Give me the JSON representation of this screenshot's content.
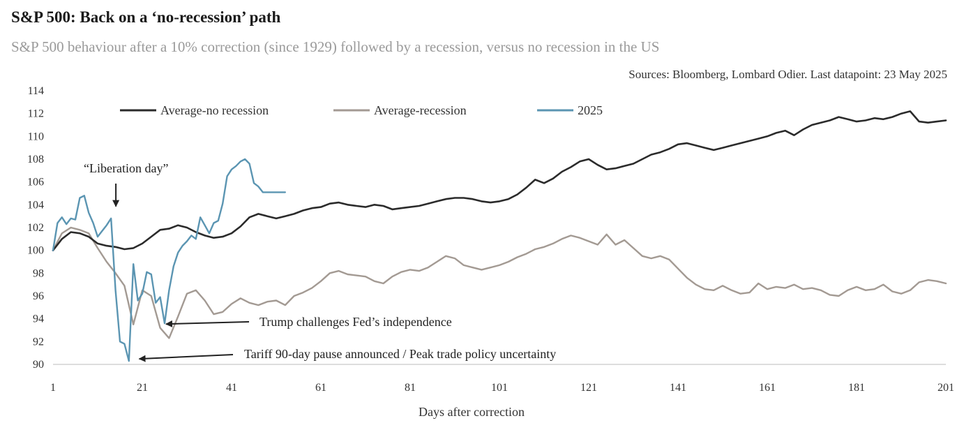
{
  "title": "S&P 500: Back on a ‘no-recession’ path",
  "subtitle": "S&P 500 behaviour after a 10% correction (since 1929) followed by a recession, versus no recession in the US",
  "source": "Sources: Bloomberg, Lombard Odier. Last datapoint: 23 May 2025",
  "chart_data": {
    "type": "line",
    "xlabel": "Days after correction",
    "ylabel": "",
    "xlim": [
      1,
      201
    ],
    "ylim": [
      90,
      114
    ],
    "x_ticks": [
      1,
      21,
      41,
      61,
      81,
      101,
      121,
      141,
      161,
      181,
      201
    ],
    "y_ticks": [
      90,
      92,
      94,
      96,
      98,
      100,
      102,
      104,
      106,
      108,
      110,
      112,
      114
    ],
    "grid": false,
    "legend_position": "top-left",
    "series": [
      {
        "name": "Average-no recession",
        "color": "#2b2b2b",
        "x": [
          1,
          3,
          5,
          7,
          9,
          11,
          13,
          15,
          17,
          19,
          21,
          23,
          25,
          27,
          29,
          31,
          33,
          35,
          37,
          39,
          41,
          43,
          45,
          47,
          49,
          51,
          53,
          55,
          57,
          59,
          61,
          63,
          65,
          67,
          69,
          71,
          73,
          75,
          77,
          79,
          81,
          83,
          85,
          87,
          89,
          91,
          93,
          95,
          97,
          99,
          101,
          103,
          105,
          107,
          109,
          111,
          113,
          115,
          117,
          119,
          121,
          123,
          125,
          127,
          129,
          131,
          133,
          135,
          137,
          139,
          141,
          143,
          145,
          147,
          149,
          151,
          153,
          155,
          157,
          159,
          161,
          163,
          165,
          167,
          169,
          171,
          173,
          175,
          177,
          179,
          181,
          183,
          185,
          187,
          189,
          191,
          193,
          195,
          197,
          199,
          201
        ],
        "values": [
          100.0,
          101.0,
          101.6,
          101.5,
          101.2,
          100.6,
          100.4,
          100.3,
          100.1,
          100.2,
          100.6,
          101.2,
          101.8,
          101.9,
          102.2,
          102.0,
          101.6,
          101.3,
          101.1,
          101.2,
          101.5,
          102.1,
          102.9,
          103.2,
          103.0,
          102.8,
          103.0,
          103.2,
          103.5,
          103.7,
          103.8,
          104.1,
          104.2,
          104.0,
          103.9,
          103.8,
          104.0,
          103.9,
          103.6,
          103.7,
          103.8,
          103.9,
          104.1,
          104.3,
          104.5,
          104.6,
          104.6,
          104.5,
          104.3,
          104.2,
          104.3,
          104.5,
          104.9,
          105.5,
          106.2,
          105.9,
          106.3,
          106.9,
          107.3,
          107.8,
          108.0,
          107.5,
          107.1,
          107.2,
          107.4,
          107.6,
          108.0,
          108.4,
          108.6,
          108.9,
          109.3,
          109.4,
          109.2,
          109.0,
          108.8,
          109.0,
          109.2,
          109.4,
          109.6,
          109.8,
          110.0,
          110.3,
          110.5,
          110.1,
          110.6,
          111.0,
          111.2,
          111.4,
          111.7,
          111.5,
          111.3,
          111.4,
          111.6,
          111.5,
          111.7,
          112.0,
          112.2,
          111.3,
          111.2,
          111.3,
          111.4
        ]
      },
      {
        "name": "Average-recession",
        "color": "#a39a93",
        "x": [
          1,
          3,
          5,
          7,
          9,
          11,
          13,
          15,
          17,
          19,
          21,
          23,
          25,
          27,
          29,
          31,
          33,
          35,
          37,
          39,
          41,
          43,
          45,
          47,
          49,
          51,
          53,
          55,
          57,
          59,
          61,
          63,
          65,
          67,
          69,
          71,
          73,
          75,
          77,
          79,
          81,
          83,
          85,
          87,
          89,
          91,
          93,
          95,
          97,
          99,
          101,
          103,
          105,
          107,
          109,
          111,
          113,
          115,
          117,
          119,
          121,
          123,
          125,
          127,
          129,
          131,
          133,
          135,
          137,
          139,
          141,
          143,
          145,
          147,
          149,
          151,
          153,
          155,
          157,
          159,
          161,
          163,
          165,
          167,
          169,
          171,
          173,
          175,
          177,
          179,
          181,
          183,
          185,
          187,
          189,
          191,
          193,
          195,
          197,
          199,
          201
        ],
        "values": [
          100.0,
          101.5,
          102.0,
          101.8,
          101.5,
          100.2,
          99.0,
          98.0,
          96.9,
          93.5,
          96.5,
          96.0,
          93.2,
          92.3,
          94.2,
          96.2,
          96.5,
          95.6,
          94.4,
          94.6,
          95.3,
          95.8,
          95.4,
          95.2,
          95.5,
          95.6,
          95.2,
          96.0,
          96.3,
          96.7,
          97.3,
          98.0,
          98.2,
          97.9,
          97.8,
          97.7,
          97.3,
          97.1,
          97.7,
          98.1,
          98.3,
          98.2,
          98.5,
          99.0,
          99.5,
          99.3,
          98.7,
          98.5,
          98.3,
          98.5,
          98.7,
          99.0,
          99.4,
          99.7,
          100.1,
          100.3,
          100.6,
          101.0,
          101.3,
          101.1,
          100.8,
          100.5,
          101.4,
          100.5,
          100.9,
          100.2,
          99.5,
          99.3,
          99.5,
          99.2,
          98.4,
          97.6,
          97.0,
          96.6,
          96.5,
          96.9,
          96.5,
          96.2,
          96.3,
          97.1,
          96.6,
          96.8,
          96.7,
          97.0,
          96.6,
          96.7,
          96.5,
          96.1,
          96.0,
          96.5,
          96.8,
          96.5,
          96.6,
          97.0,
          96.4,
          96.2,
          96.5,
          97.2,
          97.4,
          97.3,
          97.1
        ]
      },
      {
        "name": "2025",
        "color": "#5b95b2",
        "x": [
          1,
          2,
          3,
          4,
          5,
          6,
          7,
          8,
          9,
          10,
          11,
          12,
          13,
          14,
          15,
          16,
          17,
          18,
          19,
          20,
          21,
          22,
          23,
          24,
          25,
          26,
          27,
          28,
          29,
          30,
          31,
          32,
          33,
          34,
          35,
          36,
          37,
          38,
          39,
          40,
          41,
          42,
          43,
          44,
          45,
          46,
          47,
          48,
          49,
          50,
          51,
          52,
          53
        ],
        "values": [
          100.0,
          102.4,
          102.9,
          102.3,
          102.8,
          102.7,
          104.6,
          104.8,
          103.3,
          102.4,
          101.2,
          101.7,
          102.2,
          102.8,
          96.5,
          92.0,
          91.8,
          90.3,
          98.8,
          95.6,
          96.2,
          98.1,
          97.9,
          95.4,
          95.9,
          93.6,
          96.5,
          98.6,
          99.8,
          100.4,
          100.8,
          101.3,
          101.0,
          102.9,
          102.2,
          101.5,
          102.4,
          102.6,
          104.1,
          106.5,
          107.1,
          107.4,
          107.8,
          108.0,
          107.6,
          105.9,
          105.6,
          105.1,
          105.1,
          105.1,
          105.1,
          105.1,
          105.1
        ]
      }
    ],
    "annotations": [
      {
        "text": "“Liberation day”",
        "x": 15,
        "y": 103
      },
      {
        "text": "Trump challenges Fed’s independence",
        "x": 26,
        "y": 93.6
      },
      {
        "text": "Tariff 90-day pause announced / Peak trade policy uncertainty",
        "x": 20,
        "y": 90.3
      }
    ]
  }
}
